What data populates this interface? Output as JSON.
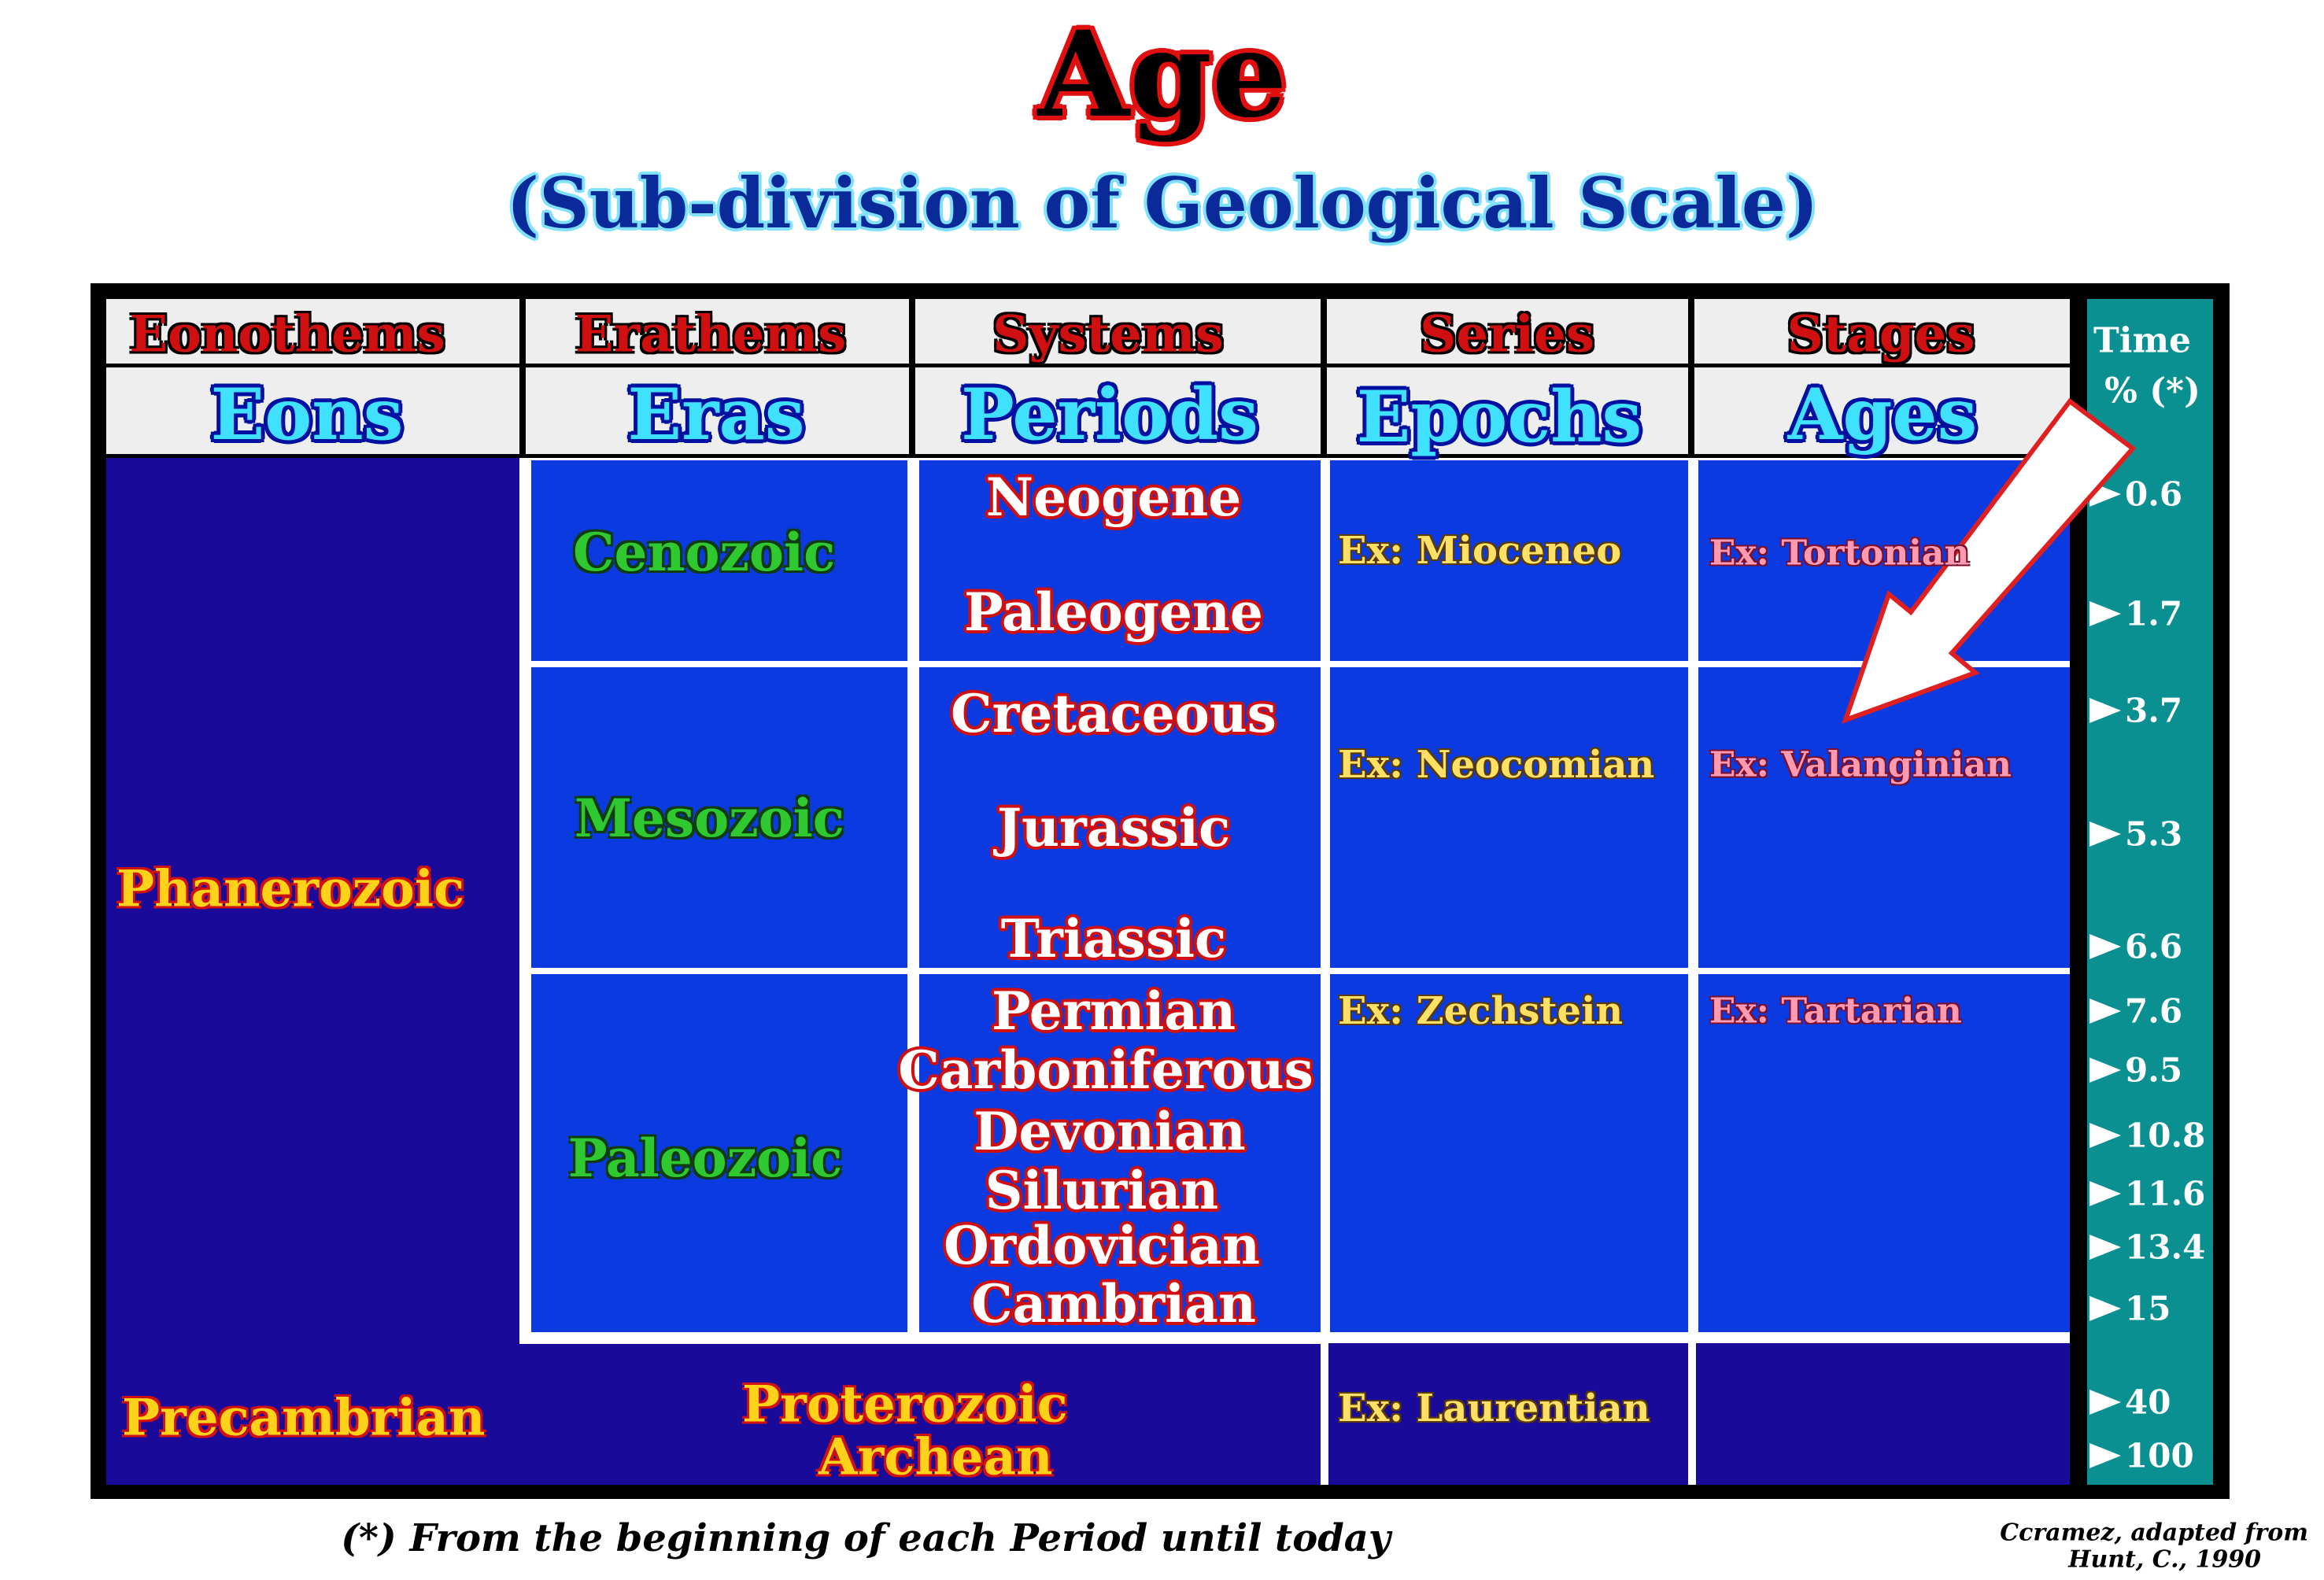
{
  "title": "Age",
  "subtitle": "(Sub-division of Geological Scale)",
  "headers": {
    "col1": {
      "top": "Eonothems",
      "bottom": "Eons"
    },
    "col2": {
      "top": "Erathems",
      "bottom": "Eras"
    },
    "col3": {
      "top": "Systems",
      "bottom": "Periods"
    },
    "col4": {
      "top": "Series",
      "bottom": "Epochs"
    },
    "col5": {
      "top": "Stages",
      "bottom": "Ages"
    },
    "time": {
      "line1": "Time",
      "line2": "% (*)"
    }
  },
  "eons": {
    "phanerozoic": "Phanerozoic",
    "precambrian": "Precambrian"
  },
  "eras": {
    "cenozoic": "Cenozoic",
    "mesozoic": "Mesozoic",
    "paleozoic": "Paleozoic",
    "proterozoic": "Proterozoic",
    "archean": "Archean"
  },
  "periods": {
    "neogene": "Neogene",
    "paleogene": "Paleogene",
    "cretaceous": "Cretaceous",
    "jurassic": "Jurassic",
    "triassic": "Triassic",
    "permian": "Permian",
    "carboniferous": "Carboniferous",
    "devonian": "Devonian",
    "silurian": "Silurian",
    "ordovician": "Ordovician",
    "cambrian": "Cambrian"
  },
  "epochs": {
    "cenozoic": "Ex: Mioceneo",
    "mesozoic": "Ex: Neocomian",
    "paleozoic": "Ex: Zechstein",
    "precambrian": "Ex: Laurentian"
  },
  "ages": {
    "cenozoic": "Ex: Tortonian",
    "mesozoic": "Ex: Valanginian",
    "paleozoic": "Ex: Tartarian"
  },
  "time_values": [
    "0.6",
    "1.7",
    "3.7",
    "5.3",
    "6.6",
    "7.6",
    "9.5",
    "10.8",
    "11.6",
    "13.4",
    "15",
    "40",
    "100"
  ],
  "footnote": "(*) From the beginning of each Period until today",
  "credit": {
    "line1": "Ccramez, adapted from",
    "line2": "Hunt, C., 1990"
  },
  "colors": {
    "frame": "#000000",
    "eon_bg": "#1a0a9a",
    "cell_bg": "#0a3ae0",
    "time_bg": "#0a9090",
    "header_bg": "#eeeeee",
    "grid": "#ffffff"
  }
}
